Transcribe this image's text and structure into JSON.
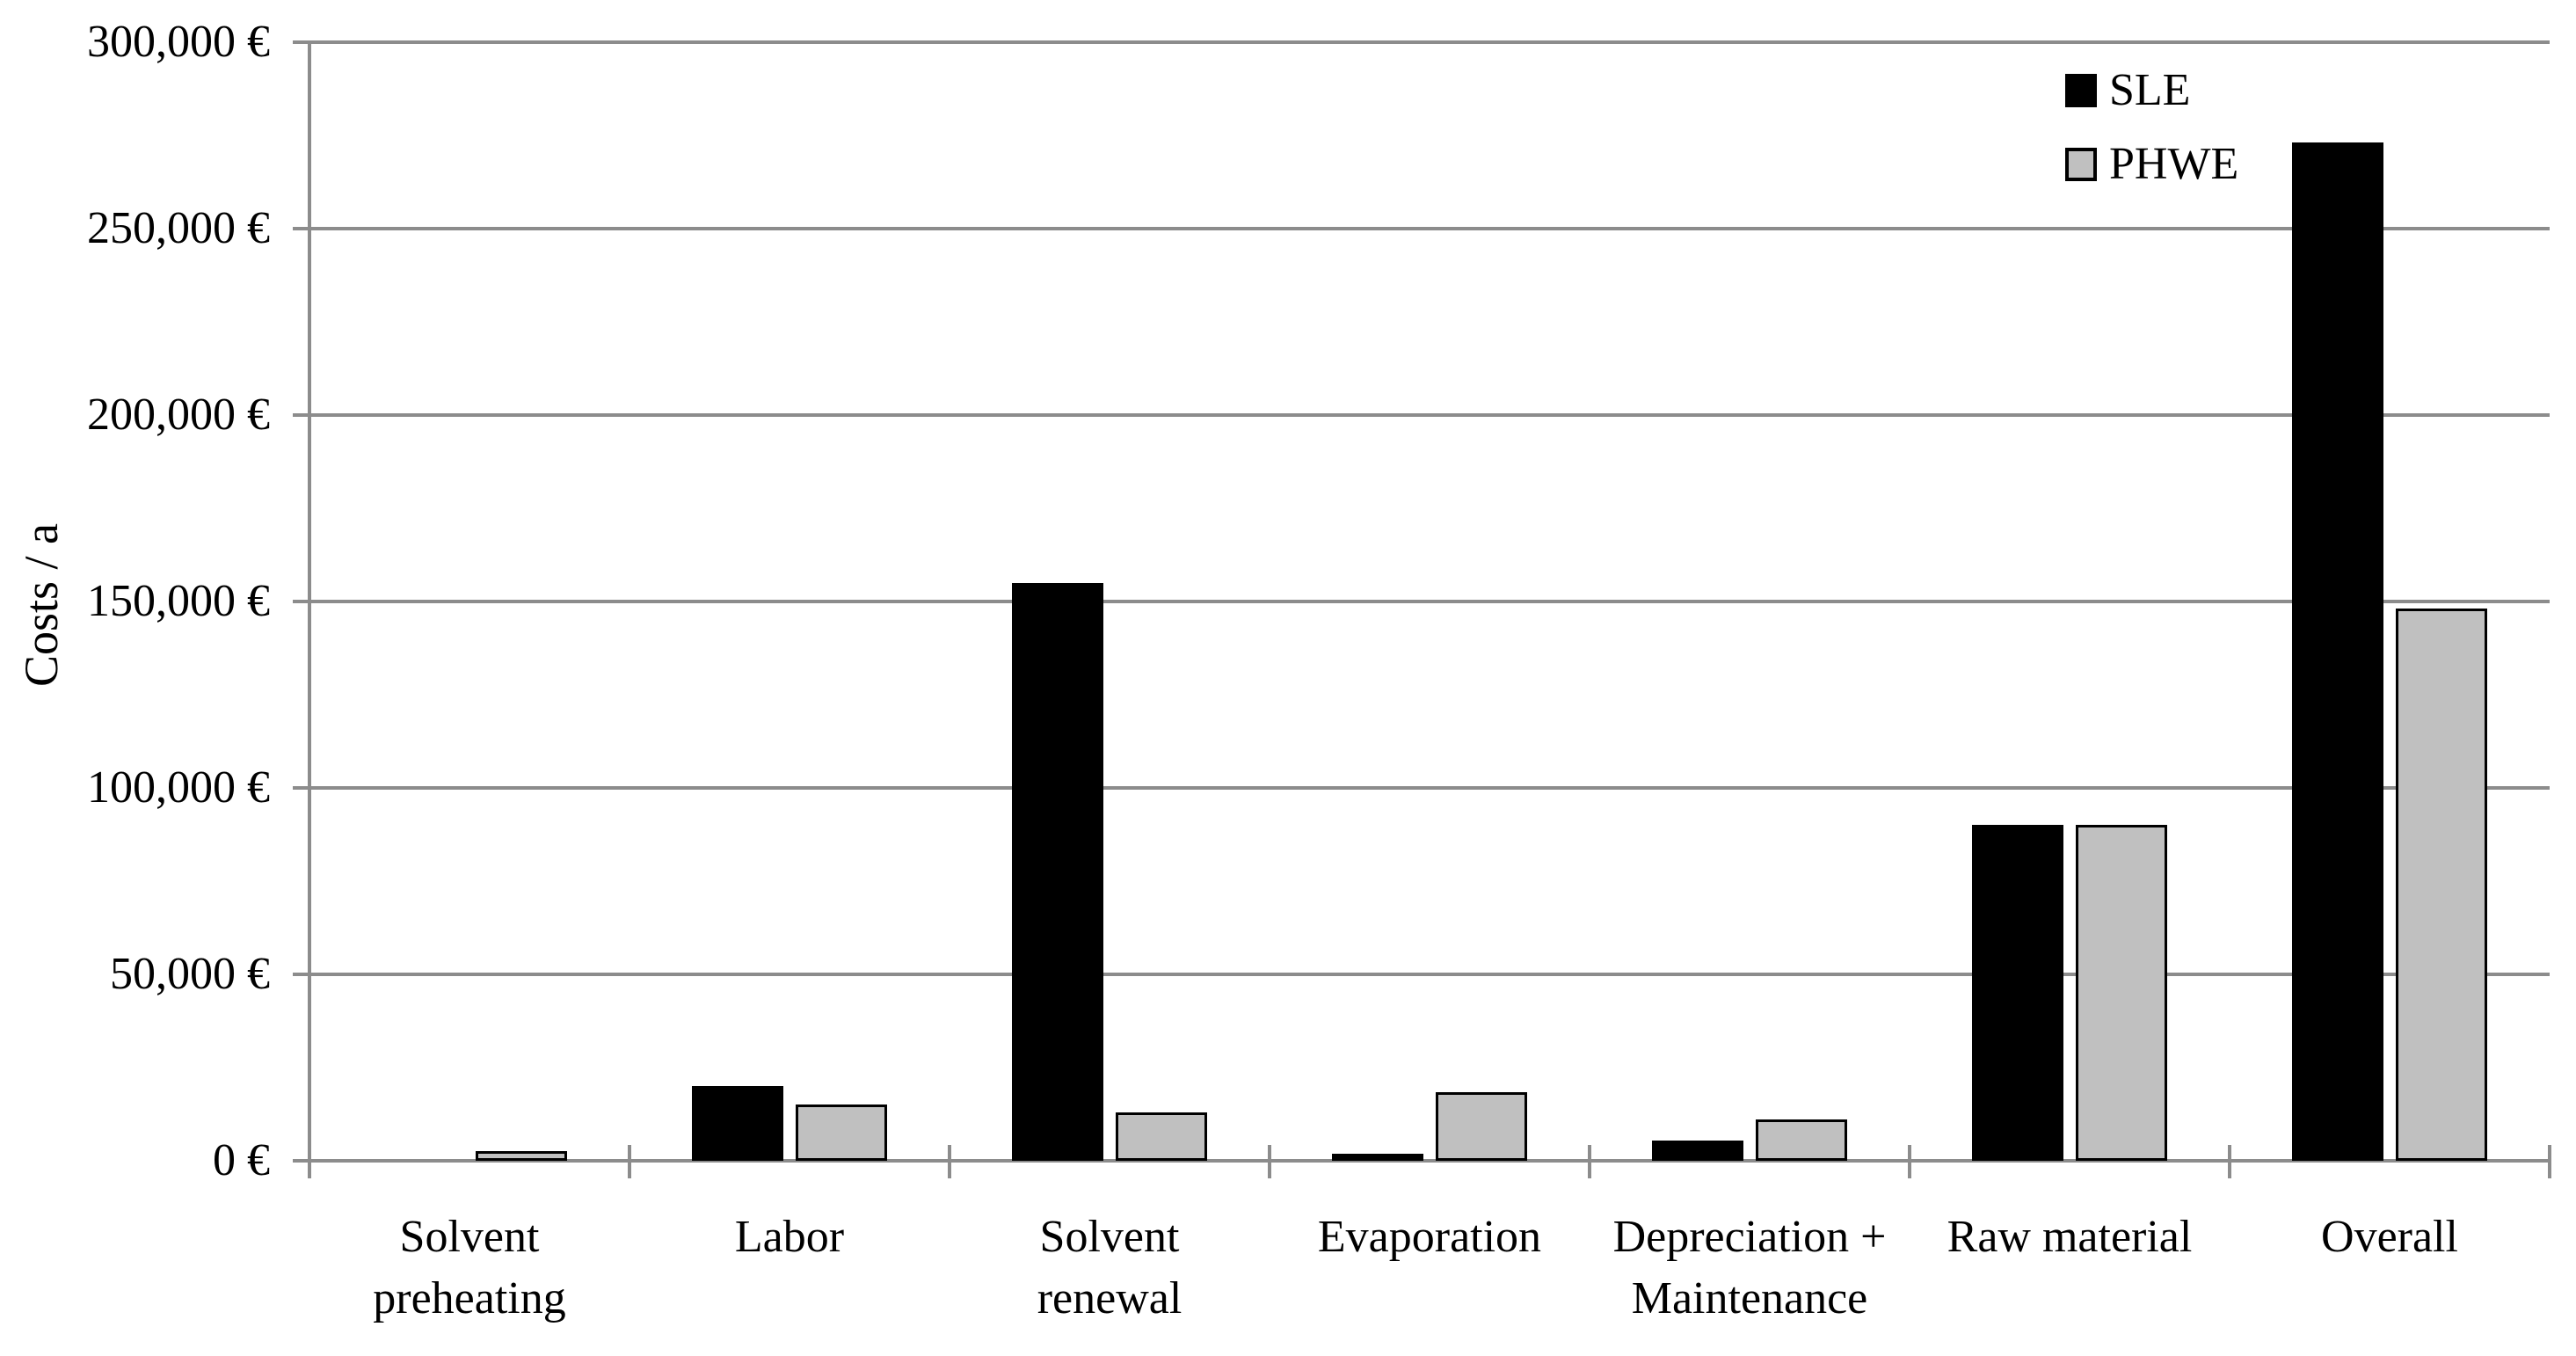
{
  "figure": {
    "background": "#ffffff",
    "text_color": "#000000",
    "axis_color": "#8c8c8c"
  },
  "chart_data": {
    "type": "bar",
    "title": "",
    "ylabel": "Costs / a",
    "xlabel": "",
    "ylim": [
      0,
      300000
    ],
    "ytick_step": 50000,
    "grid": true,
    "legend_position": "top-right",
    "categories": [
      "Solvent preheating",
      "Labor",
      "Solvent renewal",
      "Evaporation",
      "Depreciation + Maintenance",
      "Raw material",
      "Overall"
    ],
    "category_label_lines": [
      [
        "Solvent",
        "preheating"
      ],
      [
        "Labor"
      ],
      [
        "Solvent",
        "renewal"
      ],
      [
        "Evaporation"
      ],
      [
        "Depreciation +",
        "Maintenance"
      ],
      [
        "Raw material"
      ],
      [
        "Overall"
      ]
    ],
    "yticks": [
      {
        "value": 0,
        "label": "0 €"
      },
      {
        "value": 50000,
        "label": "50,000 €"
      },
      {
        "value": 100000,
        "label": "100,000 €"
      },
      {
        "value": 150000,
        "label": "150,000 €"
      },
      {
        "value": 200000,
        "label": "200,000 €"
      },
      {
        "value": 250000,
        "label": "250,000 €"
      },
      {
        "value": 300000,
        "label": "300,000 €"
      }
    ],
    "series": [
      {
        "name": "SLE",
        "color": "#000000",
        "border_color": "#000000",
        "values": [
          0,
          20000,
          155000,
          2000,
          5500,
          90000,
          273000
        ]
      },
      {
        "name": "PHWE",
        "color": "#c0c0c0",
        "border_color": "#000000",
        "values": [
          2500,
          15000,
          13000,
          18500,
          11000,
          90000,
          148000
        ]
      }
    ]
  }
}
